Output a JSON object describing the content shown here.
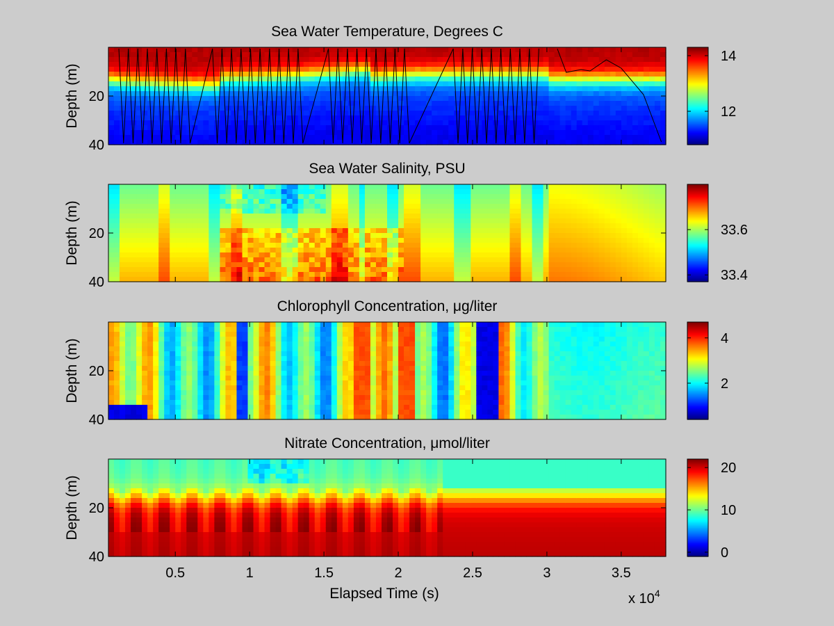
{
  "figure": {
    "background": "#cccccc",
    "colormap": "jet",
    "x_exponent_label": "x 10",
    "x_exponent_power": "4"
  },
  "chart_data": [
    {
      "type": "heatmap",
      "title": "Sea Water Temperature, Degrees C",
      "xlabel": "",
      "ylabel": "Depth (m)",
      "xlim": [
        500,
        38000
      ],
      "ylim": [
        0,
        40
      ],
      "y_reversed": true,
      "y_ticks": [
        20,
        40
      ],
      "y_tick_labels": [
        "20",
        "40"
      ],
      "clim": [
        10.8,
        14.3
      ],
      "colorbar_ticks": [
        12,
        14
      ],
      "colorbar_tick_labels": [
        "12",
        "14"
      ],
      "profile_track_overlay": true,
      "sample_profile": {
        "depth": [
          0,
          5,
          10,
          15,
          20,
          30,
          40
        ],
        "value": [
          14.2,
          14.0,
          13.4,
          12.3,
          11.6,
          11.2,
          11.0
        ]
      }
    },
    {
      "type": "heatmap",
      "title": "Sea Water Salinity, PSU",
      "xlabel": "",
      "ylabel": "Depth (m)",
      "xlim": [
        500,
        38000
      ],
      "ylim": [
        0,
        40
      ],
      "y_reversed": true,
      "y_ticks": [
        20,
        40
      ],
      "y_tick_labels": [
        "20",
        "40"
      ],
      "clim": [
        33.37,
        33.8
      ],
      "colorbar_ticks": [
        33.4,
        33.6
      ],
      "colorbar_tick_labels": [
        "33.4",
        "33.6"
      ],
      "sample_profile": {
        "depth": [
          0,
          10,
          20,
          30,
          40
        ],
        "value": [
          33.52,
          33.56,
          33.62,
          33.68,
          33.7
        ]
      }
    },
    {
      "type": "heatmap",
      "title": "Chlorophyll Concentration, μg/liter",
      "xlabel": "",
      "ylabel": "Depth (m)",
      "xlim": [
        500,
        38000
      ],
      "ylim": [
        0,
        40
      ],
      "y_reversed": true,
      "y_ticks": [
        20,
        40
      ],
      "y_tick_labels": [
        "20",
        "40"
      ],
      "clim": [
        0.4,
        4.7
      ],
      "colorbar_ticks": [
        2,
        4
      ],
      "colorbar_tick_labels": [
        "2",
        "4"
      ],
      "sample_profile": {
        "depth": [
          0,
          10,
          20,
          30,
          40
        ],
        "value": [
          2.6,
          2.7,
          2.8,
          2.9,
          2.7
        ]
      }
    },
    {
      "type": "heatmap",
      "title": "Nitrate Concentration, μmol/liter",
      "xlabel": "Elapsed Time (s)",
      "ylabel": "Depth (m)",
      "xlim": [
        500,
        38000
      ],
      "ylim": [
        0,
        40
      ],
      "y_reversed": true,
      "y_ticks": [
        20,
        40
      ],
      "y_tick_labels": [
        "20",
        "40"
      ],
      "x_ticks": [
        5000,
        10000,
        15000,
        20000,
        25000,
        30000,
        35000
      ],
      "x_tick_labels": [
        "0.5",
        "1",
        "1.5",
        "2",
        "2.5",
        "3",
        "3.5"
      ],
      "clim": [
        -1,
        22
      ],
      "colorbar_ticks": [
        0,
        10,
        20
      ],
      "colorbar_tick_labels": [
        "0",
        "10",
        "20"
      ],
      "sample_profile": {
        "depth": [
          0,
          10,
          16,
          20,
          30,
          40
        ],
        "value": [
          8,
          9,
          12,
          16,
          19,
          21
        ]
      }
    }
  ]
}
